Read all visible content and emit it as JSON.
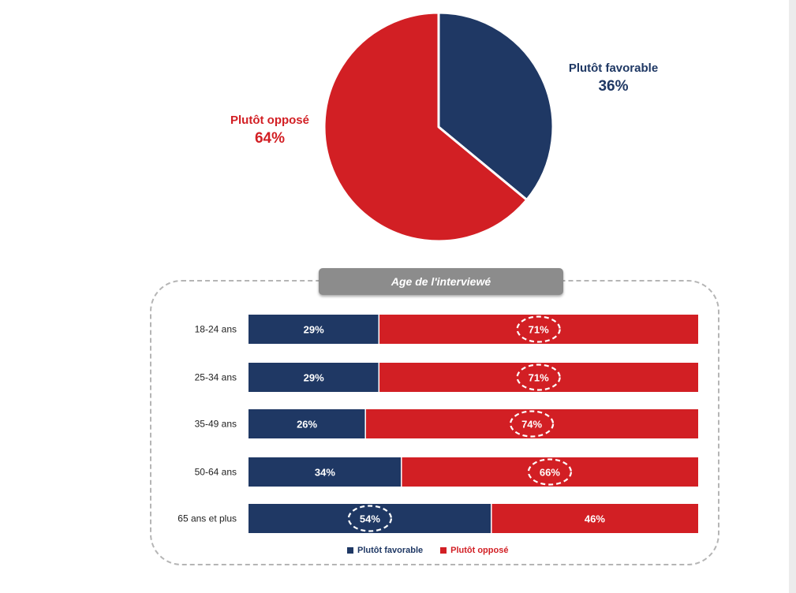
{
  "colors": {
    "favorable": "#1f3864",
    "oppose": "#d21f24"
  },
  "chart_data": [
    {
      "type": "pie",
      "slices": [
        {
          "label": "Plutôt favorable",
          "value": 36,
          "display": "36%"
        },
        {
          "label": "Plutôt opposé",
          "value": 64,
          "display": "64%"
        }
      ]
    },
    {
      "type": "bar",
      "orientation": "horizontal",
      "stacked": true,
      "title": "Age de l'interviewé",
      "categories": [
        "18-24 ans",
        "25-34 ans",
        "35-49 ans",
        "50-64 ans",
        "65 ans et plus"
      ],
      "series": [
        {
          "name": "Plutôt favorable",
          "values": [
            29,
            29,
            26,
            34,
            54
          ],
          "labels": [
            "29%",
            "29%",
            "26%",
            "34%",
            "54%"
          ]
        },
        {
          "name": "Plutôt opposé",
          "values": [
            71,
            71,
            74,
            66,
            46
          ],
          "labels": [
            "71%",
            "71%",
            "74%",
            "66%",
            "46%"
          ]
        }
      ],
      "highlighted": [
        {
          "category": "18-24 ans",
          "series": "Plutôt opposé"
        },
        {
          "category": "25-34 ans",
          "series": "Plutôt opposé"
        },
        {
          "category": "35-49 ans",
          "series": "Plutôt opposé"
        },
        {
          "category": "50-64 ans",
          "series": "Plutôt opposé"
        },
        {
          "category": "65 ans et plus",
          "series": "Plutôt favorable"
        }
      ],
      "xlim": [
        0,
        100
      ],
      "legend": "bottom"
    }
  ]
}
